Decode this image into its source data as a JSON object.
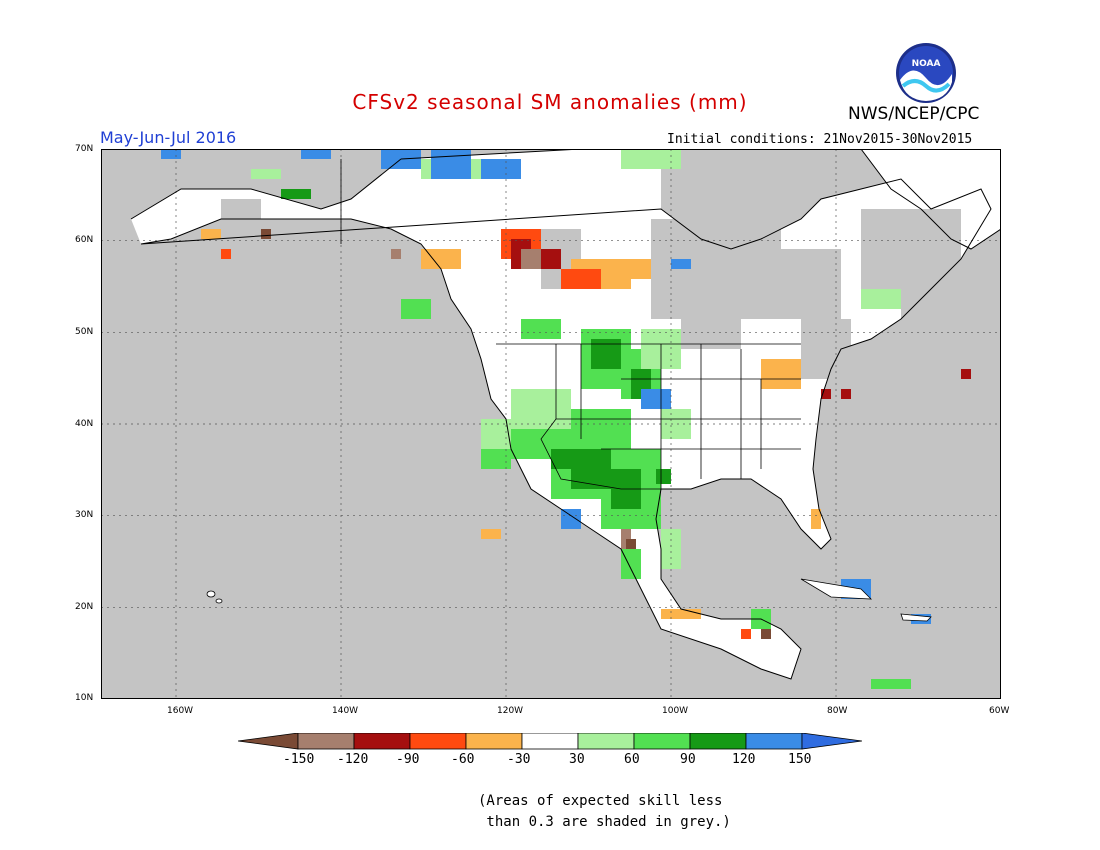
{
  "title": "CFSv2 seasonal SM anomalies (mm)",
  "agency": "NWS/NCEP/CPC",
  "logo_text": "NOAA",
  "season": "May-Jun-Jul 2016",
  "initial_conditions": "Initial conditions: 21Nov2015-30Nov2015",
  "lat_labels": [
    "70N",
    "60N",
    "50N",
    "40N",
    "30N",
    "20N",
    "10N"
  ],
  "lon_labels": [
    "160W",
    "140W",
    "120W",
    "100W",
    "80W",
    "60W"
  ],
  "colorbar": {
    "ticks": [
      "-150",
      "-120",
      "-90",
      "-60",
      "-30",
      "30",
      "60",
      "90",
      "120",
      "150"
    ],
    "colors": [
      "#7a4a35",
      "#a67f6e",
      "#a50f0f",
      "#ff4a10",
      "#fbb34c",
      "#ffffff",
      "#a8f09c",
      "#52e052",
      "#169a16",
      "#3a8ce6",
      "#2f6ce0"
    ]
  },
  "note": "(Areas of expected skill less\n than 0.3 are shaded in grey.)",
  "map_colors": {
    "grey": "#c4c4c4",
    "ocean": "#ffffff"
  }
}
